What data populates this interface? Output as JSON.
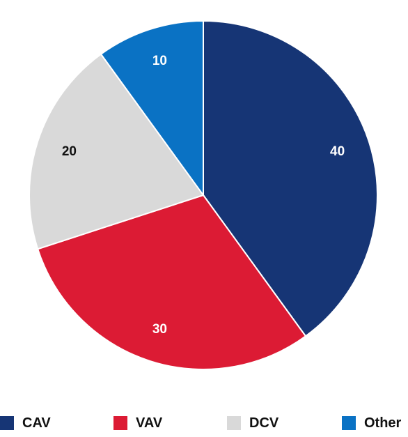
{
  "chart_data": {
    "type": "pie",
    "categories": [
      "CAV",
      "VAV",
      "DCV",
      "Other"
    ],
    "values": [
      40,
      30,
      20,
      10
    ],
    "colors": [
      "#163575",
      "#dc1b34",
      "#d9d9d9",
      "#0a72c4"
    ],
    "label_colors": [
      "#ffffff",
      "#ffffff",
      "#111111",
      "#ffffff"
    ],
    "start_angle": "12 o'clock, clockwise",
    "legend": {
      "position": "bottom",
      "items": [
        {
          "label": "CAV",
          "color": "#163575"
        },
        {
          "label": "VAV",
          "color": "#dc1b34"
        },
        {
          "label": "DCV",
          "color": "#d9d9d9"
        },
        {
          "label": "Other",
          "color": "#0a72c4"
        }
      ]
    }
  }
}
